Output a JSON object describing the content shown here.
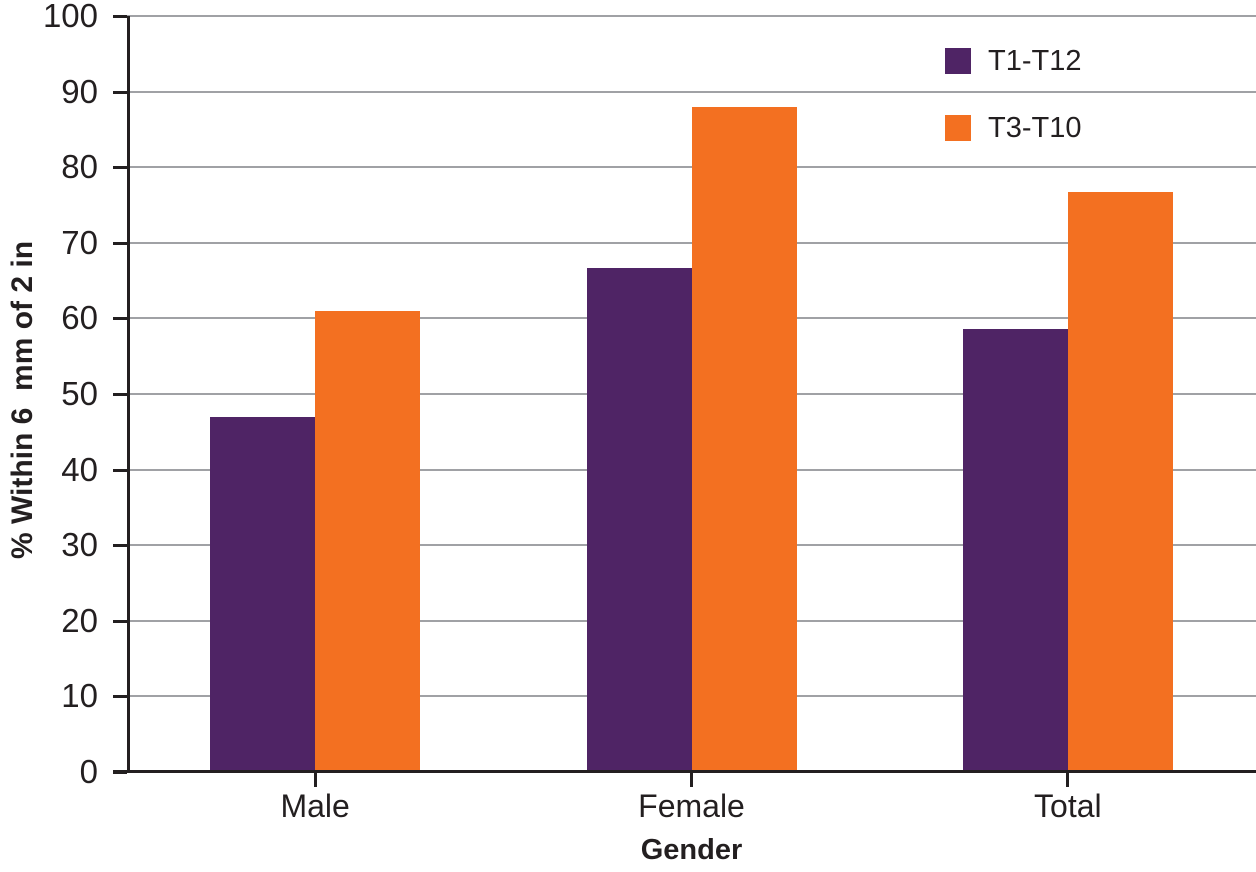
{
  "chart_data": {
    "type": "bar",
    "title": "",
    "categories": [
      "Male",
      "Female",
      "Total"
    ],
    "series": [
      {
        "name": "T1-T12",
        "color": "#4F2465",
        "values": [
          46.9,
          66.7,
          58.6
        ]
      },
      {
        "name": "T3-T10",
        "color": "#F37021",
        "values": [
          61.0,
          88.0,
          76.7
        ]
      }
    ],
    "xlabel": "Gender",
    "ylabel": "% Within 6  mm of 2 in",
    "ylim": [
      0,
      100
    ],
    "yticks": [
      0,
      10,
      20,
      30,
      40,
      50,
      60,
      70,
      80,
      90,
      100
    ],
    "grid": "horizontal",
    "legend_position": "top-right",
    "colors": {
      "gridline": "#A0A1A5",
      "axis": "#231F20",
      "text": "#231F20",
      "background": "#FFFFFF"
    }
  }
}
